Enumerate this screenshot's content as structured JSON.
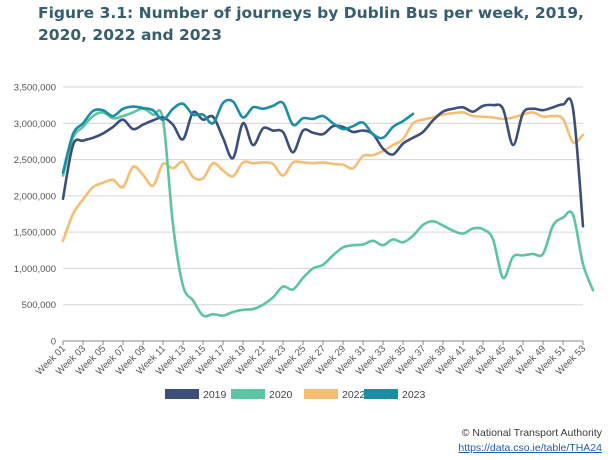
{
  "title": "Figure 3.1: Number of journeys by Dublin Bus per week, 2019, 2020, 2022 and 2023",
  "source": {
    "credit": "© National Transport Authority",
    "link": "https://data.cso.ie/table/THA24"
  },
  "chart_data": {
    "type": "line",
    "title": "Figure 3.1: Number of journeys by Dublin Bus per week, 2019, 2020, 2022 and 2023",
    "xlabel": "",
    "ylabel": "",
    "ylim": [
      0,
      3500000
    ],
    "yticks": [
      0,
      500000,
      1000000,
      1500000,
      2000000,
      2500000,
      3000000,
      3500000
    ],
    "ytick_labels": [
      "0",
      "500,000",
      "1,000,000",
      "1,500,000",
      "2,000,000",
      "2,500,000",
      "3,000,000",
      "3,500,000"
    ],
    "x_tick_labels": [
      "Week 01",
      "Week 03",
      "Week 05",
      "Week 07",
      "Week 09",
      "Week 11",
      "Week 13",
      "Week 15",
      "Week 17",
      "Week 19",
      "Week 21",
      "Week 23",
      "Week 25",
      "Week 27",
      "Week 29",
      "Week 31",
      "Week 33",
      "Week 35",
      "Week 37",
      "Week 39",
      "Week 41",
      "Week 43",
      "Week 45",
      "Week 47",
      "Week 49",
      "Week 51",
      "Week 53"
    ],
    "grid": true,
    "legend_position": "bottom",
    "series": [
      {
        "name": "2019",
        "color": "#3b4f7a",
        "values": [
          1960000,
          2700000,
          2760000,
          2800000,
          2860000,
          2950000,
          3050000,
          2920000,
          2980000,
          3040000,
          3080000,
          2980000,
          2780000,
          3150000,
          3050000,
          3090000,
          2800000,
          2520000,
          3000000,
          2700000,
          2930000,
          2900000,
          2880000,
          2600000,
          2900000,
          2870000,
          2850000,
          2960000,
          2950000,
          2880000,
          2900000,
          2850000,
          2650000,
          2570000,
          2720000,
          2800000,
          2880000,
          3040000,
          3160000,
          3200000,
          3220000,
          3160000,
          3240000,
          3250000,
          3200000,
          2700000,
          3140000,
          3200000,
          3180000,
          3220000,
          3260000,
          3200000,
          1580000
        ]
      },
      {
        "name": "2020",
        "color": "#5dc4a2",
        "values": [
          2280000,
          2800000,
          2950000,
          3100000,
          3150000,
          3070000,
          3100000,
          3150000,
          3200000,
          3120000,
          3050000,
          1600000,
          760000,
          560000,
          350000,
          370000,
          350000,
          400000,
          430000,
          440000,
          500000,
          600000,
          750000,
          710000,
          870000,
          1000000,
          1050000,
          1180000,
          1290000,
          1320000,
          1330000,
          1380000,
          1320000,
          1400000,
          1360000,
          1450000,
          1600000,
          1650000,
          1590000,
          1520000,
          1480000,
          1550000,
          1540000,
          1400000,
          870000,
          1160000,
          1180000,
          1200000,
          1200000,
          1590000,
          1700000,
          1740000,
          1060000,
          700000
        ]
      },
      {
        "name": "2022",
        "color": "#f6bd74",
        "values": [
          1380000,
          1750000,
          1950000,
          2120000,
          2180000,
          2220000,
          2120000,
          2400000,
          2290000,
          2140000,
          2440000,
          2380000,
          2470000,
          2260000,
          2240000,
          2450000,
          2350000,
          2270000,
          2460000,
          2450000,
          2460000,
          2440000,
          2280000,
          2460000,
          2460000,
          2450000,
          2460000,
          2440000,
          2430000,
          2380000,
          2550000,
          2560000,
          2620000,
          2700000,
          2780000,
          3000000,
          3050000,
          3080000,
          3120000,
          3140000,
          3150000,
          3100000,
          3090000,
          3080000,
          3060000,
          3080000,
          3120000,
          3150000,
          3090000,
          3100000,
          3060000,
          2740000,
          2840000
        ]
      },
      {
        "name": "2023",
        "color": "#1b8ea3",
        "values": [
          2320000,
          2850000,
          3000000,
          3170000,
          3180000,
          3100000,
          3200000,
          3230000,
          3210000,
          3180000,
          3050000,
          3200000,
          3270000,
          3120000,
          3120000,
          3000000,
          3280000,
          3300000,
          3080000,
          3220000,
          3200000,
          3240000,
          3280000,
          2980000,
          3070000,
          3060000,
          3100000,
          3000000,
          2920000,
          2960000,
          3010000,
          2850000,
          2800000,
          2950000,
          3030000,
          3130000
        ]
      }
    ]
  }
}
